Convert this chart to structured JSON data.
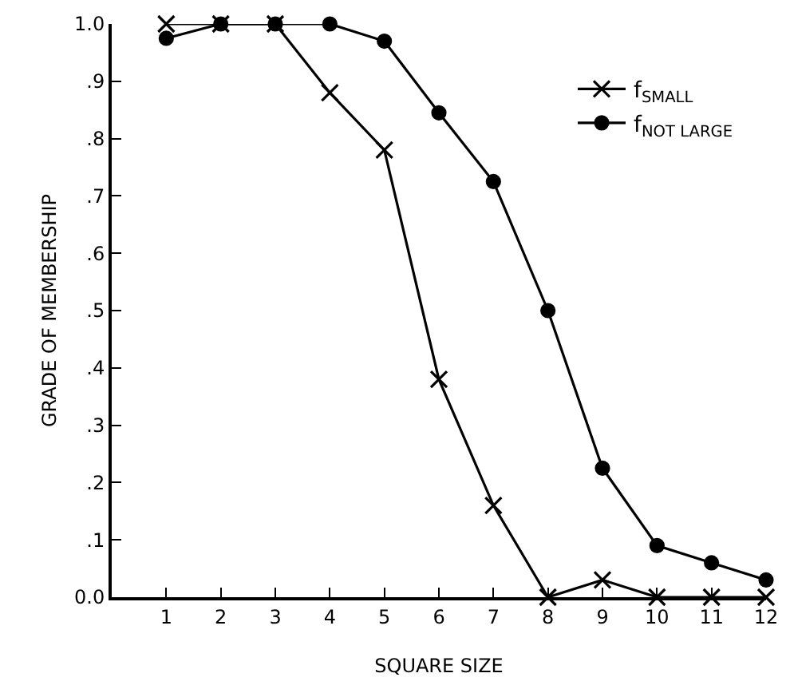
{
  "chart_data": {
    "type": "line",
    "xlabel": "SQUARE SIZE",
    "ylabel": "GRADE OF MEMBERSHIP",
    "x": [
      1,
      2,
      3,
      4,
      5,
      6,
      7,
      8,
      9,
      10,
      11,
      12
    ],
    "series": [
      {
        "name": "f$_{SMALL}$",
        "color": "#000000",
        "marker": "cross",
        "values": [
          1.0,
          1.0,
          1.0,
          0.88,
          0.78,
          0.38,
          0.16,
          0.0,
          0.03,
          0.0,
          0.0,
          0.0
        ]
      },
      {
        "name": "f$_{NOT LARGE}$",
        "color": "#000000",
        "marker": "circle",
        "values": [
          0.975,
          1.0,
          1.0,
          1.0,
          0.97,
          0.845,
          0.725,
          0.5,
          0.225,
          0.09,
          0.06,
          0.03
        ]
      }
    ],
    "xlim": [
      0,
      12
    ],
    "xticks": [
      1,
      2,
      3,
      4,
      5,
      6,
      7,
      8,
      9,
      10,
      11,
      12
    ],
    "ylim": [
      0,
      1.0
    ],
    "yticks": [
      {
        "value": 0,
        "label": "0.0"
      },
      {
        "value": 0.1,
        "label": ".1"
      },
      {
        "value": 0.2,
        "label": ".2"
      },
      {
        "value": 0.3,
        "label": ".3"
      },
      {
        "value": 0.4,
        "label": ".4"
      },
      {
        "value": 0.5,
        "label": ".5"
      },
      {
        "value": 0.6,
        "label": ".6"
      },
      {
        "value": 0.7,
        "label": ".7"
      },
      {
        "value": 0.8,
        "label": ".8"
      },
      {
        "value": 0.9,
        "label": ".9"
      },
      {
        "value": 1.0,
        "label": "1.0"
      }
    ],
    "grid": false,
    "legend": "top right",
    "line_style": "solid"
  }
}
